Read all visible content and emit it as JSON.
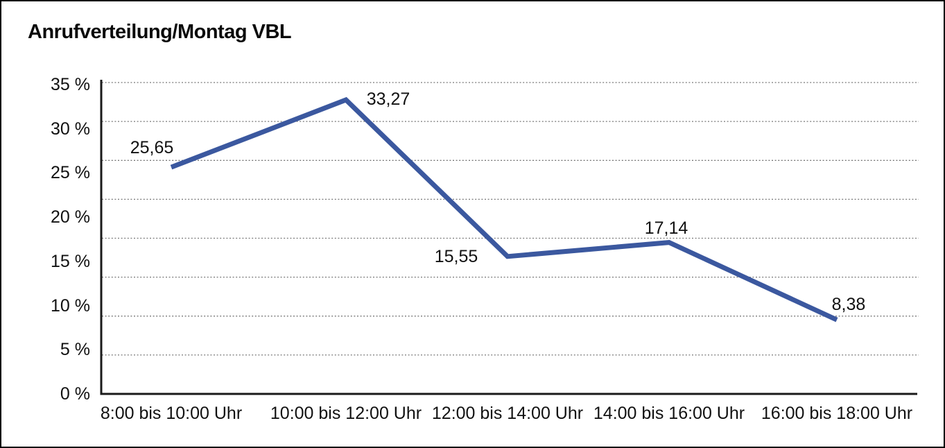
{
  "window": {
    "background": "#ffffff",
    "border_color": "#000000"
  },
  "chart_data": {
    "type": "line",
    "title": "Anrufverteilung/Montag VBL",
    "categories": [
      "8:00 bis 10:00 Uhr",
      "10:00 bis 12:00 Uhr",
      "12:00 bis 14:00 Uhr",
      "14:00 bis 16:00 Uhr",
      "16:00 bis 18:00 Uhr"
    ],
    "values": [
      25.65,
      33.27,
      15.55,
      17.14,
      8.38
    ],
    "value_labels": [
      "25,65",
      "33,27",
      "15,55",
      "17,14",
      "8,38"
    ],
    "y_ticks": [
      "35 %",
      "30 %",
      "25 %",
      "20 %",
      "15 %",
      "10 %",
      "5 %",
      "0 %"
    ],
    "ylim": [
      0,
      35
    ],
    "xlabel": "",
    "ylabel": "",
    "unit": "%",
    "grid": "horizontal dotted",
    "legend": "none",
    "line_color": "#3B589F",
    "axis_color": "#1a1a1a",
    "gridline_color": "#777777",
    "label_color": "#111111"
  }
}
